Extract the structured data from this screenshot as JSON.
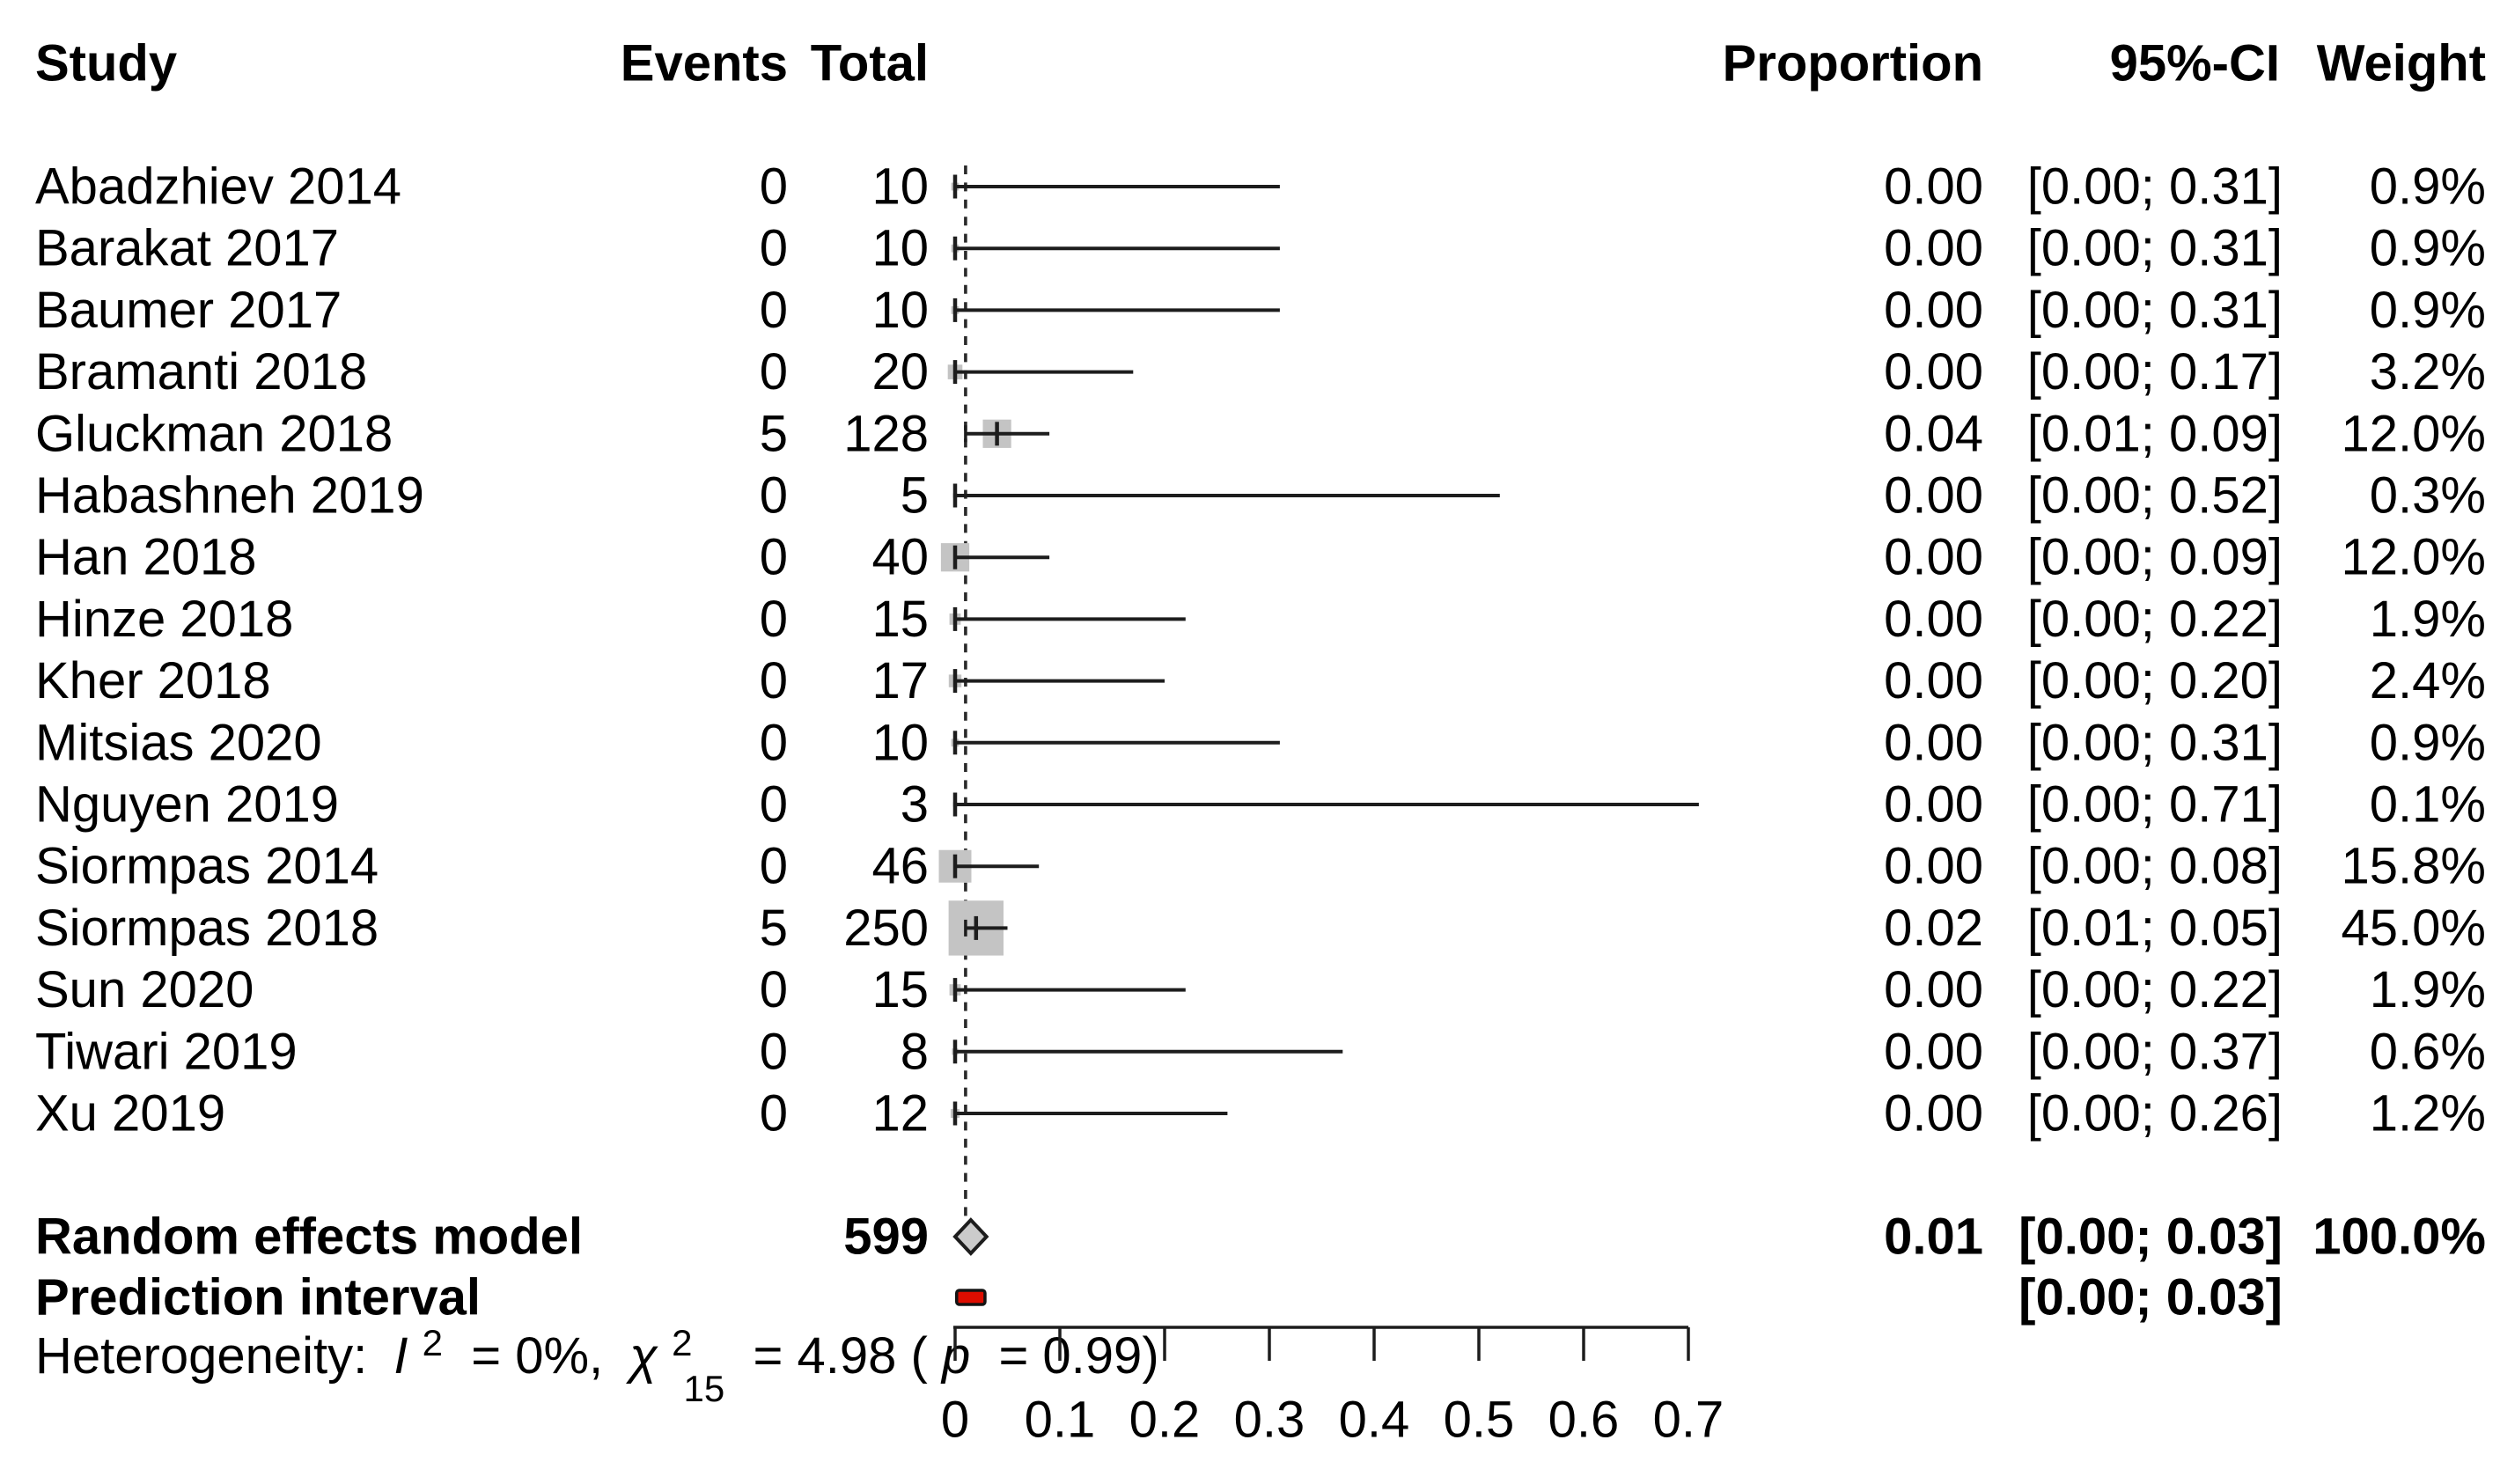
{
  "header": {
    "study": "Study",
    "events": "Events",
    "total": "Total",
    "proportion": "Proportion",
    "ci": "95%-CI",
    "weight": "Weight"
  },
  "chart_data": {
    "type": "forest",
    "title": "",
    "legend": "none",
    "grid": "off",
    "x_axis": {
      "min": 0,
      "max": 0.7,
      "tick_values": [
        0,
        0.1,
        0.2,
        0.3,
        0.4,
        0.5,
        0.6,
        0.7
      ],
      "tick_labels": [
        "0",
        "0.1",
        "0.2",
        "0.3",
        "0.4",
        "0.5",
        "0.6",
        "0.7"
      ]
    },
    "pooled_estimate": 0.01,
    "studies": [
      {
        "name": "Abadzhiev 2014",
        "events": "0",
        "total": "10",
        "proportion": "0.00",
        "estimate": 0.0,
        "ci_text": "[0.00; 0.31]",
        "ci_lower": 0.0,
        "ci_upper": 0.31,
        "weight_text": "0.9%",
        "weight": 0.9
      },
      {
        "name": "Barakat 2017",
        "events": "0",
        "total": "10",
        "proportion": "0.00",
        "estimate": 0.0,
        "ci_text": "[0.00; 0.31]",
        "ci_lower": 0.0,
        "ci_upper": 0.31,
        "weight_text": "0.9%",
        "weight": 0.9
      },
      {
        "name": "Baumer 2017",
        "events": "0",
        "total": "10",
        "proportion": "0.00",
        "estimate": 0.0,
        "ci_text": "[0.00; 0.31]",
        "ci_lower": 0.0,
        "ci_upper": 0.31,
        "weight_text": "0.9%",
        "weight": 0.9
      },
      {
        "name": "Bramanti 2018",
        "events": "0",
        "total": "20",
        "proportion": "0.00",
        "estimate": 0.0,
        "ci_text": "[0.00; 0.17]",
        "ci_lower": 0.0,
        "ci_upper": 0.17,
        "weight_text": "3.2%",
        "weight": 3.2
      },
      {
        "name": "Gluckman 2018",
        "events": "5",
        "total": "128",
        "proportion": "0.04",
        "estimate": 0.04,
        "ci_text": "[0.01; 0.09]",
        "ci_lower": 0.01,
        "ci_upper": 0.09,
        "weight_text": "12.0%",
        "weight": 12.0
      },
      {
        "name": "Habashneh 2019",
        "events": "0",
        "total": "5",
        "proportion": "0.00",
        "estimate": 0.0,
        "ci_text": "[0.00; 0.52]",
        "ci_lower": 0.0,
        "ci_upper": 0.52,
        "weight_text": "0.3%",
        "weight": 0.3
      },
      {
        "name": "Han 2018",
        "events": "0",
        "total": "40",
        "proportion": "0.00",
        "estimate": 0.0,
        "ci_text": "[0.00; 0.09]",
        "ci_lower": 0.0,
        "ci_upper": 0.09,
        "weight_text": "12.0%",
        "weight": 12.0
      },
      {
        "name": "Hinze 2018",
        "events": "0",
        "total": "15",
        "proportion": "0.00",
        "estimate": 0.0,
        "ci_text": "[0.00; 0.22]",
        "ci_lower": 0.0,
        "ci_upper": 0.22,
        "weight_text": "1.9%",
        "weight": 1.9
      },
      {
        "name": "Kher 2018",
        "events": "0",
        "total": "17",
        "proportion": "0.00",
        "estimate": 0.0,
        "ci_text": "[0.00; 0.20]",
        "ci_lower": 0.0,
        "ci_upper": 0.2,
        "weight_text": "2.4%",
        "weight": 2.4
      },
      {
        "name": "Mitsias 2020",
        "events": "0",
        "total": "10",
        "proportion": "0.00",
        "estimate": 0.0,
        "ci_text": "[0.00; 0.31]",
        "ci_lower": 0.0,
        "ci_upper": 0.31,
        "weight_text": "0.9%",
        "weight": 0.9
      },
      {
        "name": "Nguyen 2019",
        "events": "0",
        "total": "3",
        "proportion": "0.00",
        "estimate": 0.0,
        "ci_text": "[0.00; 0.71]",
        "ci_lower": 0.0,
        "ci_upper": 0.71,
        "weight_text": "0.1%",
        "weight": 0.1
      },
      {
        "name": "Siormpas 2014",
        "events": "0",
        "total": "46",
        "proportion": "0.00",
        "estimate": 0.0,
        "ci_text": "[0.00; 0.08]",
        "ci_lower": 0.0,
        "ci_upper": 0.08,
        "weight_text": "15.8%",
        "weight": 15.8
      },
      {
        "name": "Siormpas 2018",
        "events": "5",
        "total": "250",
        "proportion": "0.02",
        "estimate": 0.02,
        "ci_text": "[0.01; 0.05]",
        "ci_lower": 0.01,
        "ci_upper": 0.05,
        "weight_text": "45.0%",
        "weight": 45.0
      },
      {
        "name": "Sun 2020",
        "events": "0",
        "total": "15",
        "proportion": "0.00",
        "estimate": 0.0,
        "ci_text": "[0.00; 0.22]",
        "ci_lower": 0.0,
        "ci_upper": 0.22,
        "weight_text": "1.9%",
        "weight": 1.9
      },
      {
        "name": "Tiwari 2019",
        "events": "0",
        "total": "8",
        "proportion": "0.00",
        "estimate": 0.0,
        "ci_text": "[0.00; 0.37]",
        "ci_lower": 0.0,
        "ci_upper": 0.37,
        "weight_text": "0.6%",
        "weight": 0.6
      },
      {
        "name": "Xu 2019",
        "events": "0",
        "total": "12",
        "proportion": "0.00",
        "estimate": 0.0,
        "ci_text": "[0.00; 0.26]",
        "ci_lower": 0.0,
        "ci_upper": 0.26,
        "weight_text": "1.2%",
        "weight": 1.2
      }
    ],
    "summary": {
      "name": "Random effects model",
      "total": "599",
      "proportion": "0.01",
      "estimate": 0.01,
      "ci_text": "[0.00; 0.03]",
      "ci_lower": 0.0,
      "ci_upper": 0.03,
      "weight_text": "100.0%"
    },
    "prediction": {
      "name": "Prediction interval",
      "ci_text": "[0.00; 0.03]",
      "ci_lower": 0.0,
      "ci_upper": 0.03
    },
    "heterogeneity": {
      "label": "Heterogeneity:",
      "i": "I",
      "i_exp": "2",
      "i_eq": " = 0%,",
      "chi": "χ",
      "chi_exp": "2",
      "chi_sub": "15",
      "chi_eq": " = 4.98 (",
      "p": "p",
      "p_eq": " = 0.99)"
    },
    "colors": {
      "text": "#000000",
      "line": "#1d1d1d",
      "square": "#c4c4c4",
      "diamond_fill": "#cbcbcb",
      "diamond_stroke": "#1d1d1d",
      "prediction_fill": "#dd0d00",
      "prediction_stroke": "#141414",
      "dashed_line": "#2a2a2a"
    }
  }
}
